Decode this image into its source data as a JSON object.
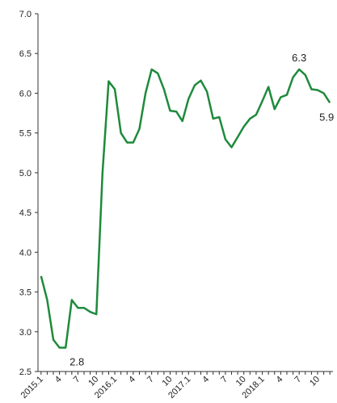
{
  "chart_data": {
    "type": "line",
    "categories": [
      "2015.1",
      null,
      null,
      "4",
      null,
      null,
      "7",
      null,
      null,
      "10",
      null,
      null,
      "2016.1",
      null,
      null,
      "4",
      null,
      null,
      "7",
      null,
      null,
      "10",
      null,
      null,
      "2017.1",
      null,
      null,
      "4",
      null,
      null,
      "7",
      null,
      null,
      "10",
      null,
      null,
      "2018.1",
      null,
      null,
      "4",
      null,
      null,
      "7",
      null,
      null,
      "10",
      null,
      null
    ],
    "series": [
      {
        "color": "#1e8a3c",
        "values": [
          3.7,
          3.4,
          2.9,
          2.8,
          2.8,
          3.4,
          3.3,
          3.3,
          3.25,
          3.22,
          5.0,
          6.15,
          6.05,
          5.5,
          5.38,
          5.38,
          5.55,
          6.0,
          6.3,
          6.25,
          6.05,
          5.78,
          5.77,
          5.65,
          5.93,
          6.1,
          6.16,
          6.02,
          5.68,
          5.7,
          5.42,
          5.32,
          5.45,
          5.58,
          5.68,
          5.73,
          5.9,
          6.08,
          5.8,
          5.95,
          5.98,
          6.2,
          6.3,
          6.23,
          6.05,
          6.04,
          6.0,
          5.88
        ],
        "value_labels": [
          null,
          null,
          null,
          null,
          "2.8",
          null,
          null,
          null,
          null,
          null,
          null,
          null,
          null,
          null,
          null,
          null,
          null,
          null,
          null,
          null,
          null,
          null,
          null,
          null,
          null,
          null,
          null,
          null,
          null,
          null,
          null,
          null,
          null,
          null,
          null,
          null,
          null,
          null,
          null,
          null,
          null,
          null,
          "6.3",
          null,
          null,
          null,
          null,
          "5.9"
        ]
      }
    ],
    "ylim": [
      2.5,
      7.0
    ],
    "yticks": [
      {
        "value": 2.5,
        "label": "2.5"
      },
      {
        "value": 3,
        "label": "3.0"
      },
      3.5,
      {
        "value": 4,
        "label": "4.0"
      },
      4.5,
      {
        "value": 5,
        "label": "5.0"
      },
      5.5,
      {
        "value": 6,
        "label": "6.0"
      },
      6.5,
      {
        "value": 7,
        "label": "7.0"
      }
    ],
    "grid": false
  }
}
